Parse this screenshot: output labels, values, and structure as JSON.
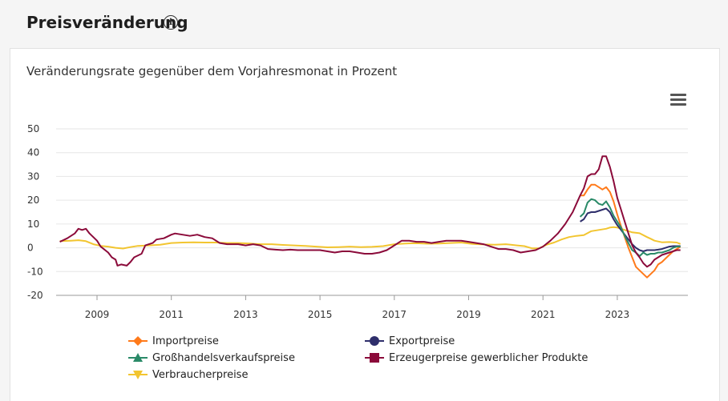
{
  "header": {
    "title": "Preisveränderung",
    "info_icon": "info-icon"
  },
  "menu": {
    "icon": "hamburger-menu-icon"
  },
  "chart_data": {
    "type": "line",
    "title": "Preisveränderung",
    "subtitle": "Veränderungsrate gegenüber dem Vorjahresmonat in Prozent",
    "xlabel": "",
    "ylabel": "",
    "xlim": [
      2007.9,
      2024.9
    ],
    "ylim": [
      -20,
      50
    ],
    "yticks": [
      -20,
      -10,
      0,
      10,
      20,
      30,
      40,
      50
    ],
    "xticks": [
      "2009",
      "2011",
      "2013",
      "2015",
      "2017",
      "2019",
      "2021",
      "2023"
    ],
    "grid": true,
    "legend_position": "bottom",
    "series": [
      {
        "name": "Importpreise",
        "color": "#ff7a1a",
        "marker": "diamond",
        "points": [
          [
            2022.0,
            22
          ],
          [
            2022.1,
            22
          ],
          [
            2022.2,
            24.5
          ],
          [
            2022.3,
            26.5
          ],
          [
            2022.4,
            26.5
          ],
          [
            2022.5,
            25.5
          ],
          [
            2022.6,
            24.5
          ],
          [
            2022.7,
            25.5
          ],
          [
            2022.8,
            23.5
          ],
          [
            2022.9,
            19.5
          ],
          [
            2023.0,
            14
          ],
          [
            2023.1,
            9
          ],
          [
            2023.2,
            4.5
          ],
          [
            2023.3,
            0
          ],
          [
            2023.4,
            -4
          ],
          [
            2023.5,
            -8
          ],
          [
            2023.6,
            -9.5
          ],
          [
            2023.7,
            -11
          ],
          [
            2023.8,
            -12.5
          ],
          [
            2023.9,
            -11
          ],
          [
            2024.0,
            -9.5
          ],
          [
            2024.1,
            -7
          ],
          [
            2024.2,
            -6
          ],
          [
            2024.3,
            -4.5
          ],
          [
            2024.4,
            -3
          ],
          [
            2024.5,
            -1.5
          ],
          [
            2024.6,
            -0.5
          ],
          [
            2024.7,
            0.5
          ]
        ]
      },
      {
        "name": "Exportpreise",
        "color": "#2e2e6b",
        "marker": "circle",
        "points": [
          [
            2022.0,
            11
          ],
          [
            2022.1,
            12
          ],
          [
            2022.2,
            14.5
          ],
          [
            2022.3,
            15
          ],
          [
            2022.4,
            15
          ],
          [
            2022.5,
            15.5
          ],
          [
            2022.6,
            16
          ],
          [
            2022.7,
            16.5
          ],
          [
            2022.8,
            15
          ],
          [
            2022.9,
            12
          ],
          [
            2023.0,
            9.5
          ],
          [
            2023.1,
            7.5
          ],
          [
            2023.2,
            5.5
          ],
          [
            2023.3,
            3.5
          ],
          [
            2023.4,
            1.5
          ],
          [
            2023.5,
            0
          ],
          [
            2023.6,
            -1
          ],
          [
            2023.7,
            -1.5
          ],
          [
            2023.8,
            -1
          ],
          [
            2023.9,
            -1
          ],
          [
            2024.0,
            -1
          ],
          [
            2024.1,
            -0.8
          ],
          [
            2024.2,
            -0.5
          ],
          [
            2024.3,
            0
          ],
          [
            2024.4,
            0.5
          ],
          [
            2024.5,
            0.7
          ],
          [
            2024.6,
            0.7
          ],
          [
            2024.7,
            0.7
          ]
        ]
      },
      {
        "name": "Großhandelsverkaufspreise",
        "color": "#2a8a68",
        "marker": "triangle",
        "points": [
          [
            2022.0,
            13
          ],
          [
            2022.1,
            14.5
          ],
          [
            2022.2,
            19
          ],
          [
            2022.3,
            20.5
          ],
          [
            2022.4,
            20
          ],
          [
            2022.5,
            18.5
          ],
          [
            2022.6,
            18
          ],
          [
            2022.7,
            19.5
          ],
          [
            2022.8,
            17
          ],
          [
            2022.9,
            13.5
          ],
          [
            2023.0,
            11
          ],
          [
            2023.1,
            8.5
          ],
          [
            2023.2,
            5
          ],
          [
            2023.3,
            2
          ],
          [
            2023.4,
            -1
          ],
          [
            2023.5,
            -2
          ],
          [
            2023.6,
            -3.5
          ],
          [
            2023.7,
            -2
          ],
          [
            2023.8,
            -3
          ],
          [
            2023.9,
            -2.5
          ],
          [
            2024.0,
            -2.5
          ],
          [
            2024.1,
            -2
          ],
          [
            2024.2,
            -2
          ],
          [
            2024.3,
            -1.5
          ],
          [
            2024.4,
            -1
          ],
          [
            2024.5,
            0
          ],
          [
            2024.6,
            0.5
          ],
          [
            2024.7,
            0.5
          ]
        ]
      },
      {
        "name": "Erzeugerpreise gewerblicher Produkte",
        "color": "#8b0a3a",
        "marker": "square",
        "points": [
          [
            2008.0,
            2.5
          ],
          [
            2008.2,
            4
          ],
          [
            2008.4,
            6
          ],
          [
            2008.5,
            8
          ],
          [
            2008.6,
            7.5
          ],
          [
            2008.7,
            8
          ],
          [
            2008.8,
            6
          ],
          [
            2009.0,
            3
          ],
          [
            2009.1,
            0.5
          ],
          [
            2009.3,
            -2
          ],
          [
            2009.4,
            -4
          ],
          [
            2009.5,
            -5
          ],
          [
            2009.55,
            -7.5
          ],
          [
            2009.65,
            -7
          ],
          [
            2009.8,
            -7.5
          ],
          [
            2009.9,
            -6
          ],
          [
            2010.0,
            -4
          ],
          [
            2010.2,
            -2.5
          ],
          [
            2010.3,
            1
          ],
          [
            2010.5,
            2
          ],
          [
            2010.6,
            3.5
          ],
          [
            2010.8,
            4
          ],
          [
            2011.0,
            5.5
          ],
          [
            2011.1,
            6
          ],
          [
            2011.3,
            5.5
          ],
          [
            2011.5,
            5
          ],
          [
            2011.7,
            5.5
          ],
          [
            2011.9,
            4.5
          ],
          [
            2012.1,
            4
          ],
          [
            2012.3,
            2
          ],
          [
            2012.5,
            1.5
          ],
          [
            2012.8,
            1.5
          ],
          [
            2013.0,
            1
          ],
          [
            2013.2,
            1.5
          ],
          [
            2013.4,
            1
          ],
          [
            2013.6,
            -0.5
          ],
          [
            2013.8,
            -0.8
          ],
          [
            2014.0,
            -1
          ],
          [
            2014.2,
            -0.8
          ],
          [
            2014.4,
            -1
          ],
          [
            2014.6,
            -1
          ],
          [
            2014.8,
            -1
          ],
          [
            2015.0,
            -1
          ],
          [
            2015.2,
            -1.5
          ],
          [
            2015.4,
            -2
          ],
          [
            2015.6,
            -1.5
          ],
          [
            2015.8,
            -1.5
          ],
          [
            2016.0,
            -2
          ],
          [
            2016.2,
            -2.5
          ],
          [
            2016.4,
            -2.5
          ],
          [
            2016.6,
            -2
          ],
          [
            2016.8,
            -1
          ],
          [
            2017.0,
            1
          ],
          [
            2017.2,
            3
          ],
          [
            2017.4,
            3
          ],
          [
            2017.6,
            2.5
          ],
          [
            2017.8,
            2.5
          ],
          [
            2018.0,
            2
          ],
          [
            2018.2,
            2.5
          ],
          [
            2018.4,
            3
          ],
          [
            2018.6,
            3
          ],
          [
            2018.8,
            3
          ],
          [
            2019.0,
            2.5
          ],
          [
            2019.2,
            2
          ],
          [
            2019.4,
            1.5
          ],
          [
            2019.6,
            0.5
          ],
          [
            2019.8,
            -0.5
          ],
          [
            2020.0,
            -0.5
          ],
          [
            2020.2,
            -1
          ],
          [
            2020.4,
            -2
          ],
          [
            2020.6,
            -1.5
          ],
          [
            2020.8,
            -1
          ],
          [
            2021.0,
            0.5
          ],
          [
            2021.2,
            3
          ],
          [
            2021.4,
            6
          ],
          [
            2021.6,
            10
          ],
          [
            2021.8,
            15
          ],
          [
            2022.0,
            22
          ],
          [
            2022.1,
            25
          ],
          [
            2022.2,
            30
          ],
          [
            2022.3,
            31
          ],
          [
            2022.4,
            31
          ],
          [
            2022.5,
            33
          ],
          [
            2022.6,
            38.5
          ],
          [
            2022.7,
            38.5
          ],
          [
            2022.8,
            34
          ],
          [
            2022.9,
            28
          ],
          [
            2023.0,
            21
          ],
          [
            2023.1,
            16
          ],
          [
            2023.2,
            11
          ],
          [
            2023.3,
            6
          ],
          [
            2023.4,
            1
          ],
          [
            2023.5,
            -2
          ],
          [
            2023.6,
            -4
          ],
          [
            2023.7,
            -6.5
          ],
          [
            2023.8,
            -8
          ],
          [
            2023.9,
            -7
          ],
          [
            2024.0,
            -5
          ],
          [
            2024.1,
            -4
          ],
          [
            2024.2,
            -3
          ],
          [
            2024.3,
            -2.5
          ],
          [
            2024.4,
            -2
          ],
          [
            2024.5,
            -1.5
          ],
          [
            2024.6,
            -1
          ],
          [
            2024.7,
            -1
          ]
        ]
      },
      {
        "name": "Verbraucherpreise",
        "color": "#f2c530",
        "marker": "triangle-down",
        "points": [
          [
            2008.0,
            2.8
          ],
          [
            2008.3,
            3
          ],
          [
            2008.5,
            3.2
          ],
          [
            2008.7,
            2.8
          ],
          [
            2008.9,
            1.5
          ],
          [
            2009.1,
            0.8
          ],
          [
            2009.3,
            0.5
          ],
          [
            2009.5,
            0
          ],
          [
            2009.7,
            -0.3
          ],
          [
            2009.9,
            0.3
          ],
          [
            2010.1,
            0.8
          ],
          [
            2010.4,
            1
          ],
          [
            2010.7,
            1.3
          ],
          [
            2011.0,
            2
          ],
          [
            2011.3,
            2.2
          ],
          [
            2011.6,
            2.3
          ],
          [
            2011.9,
            2.2
          ],
          [
            2012.2,
            2.2
          ],
          [
            2012.5,
            2
          ],
          [
            2012.8,
            2
          ],
          [
            2013.1,
            1.8
          ],
          [
            2013.4,
            1.5
          ],
          [
            2013.7,
            1.5
          ],
          [
            2014.0,
            1.2
          ],
          [
            2014.3,
            1
          ],
          [
            2014.6,
            0.8
          ],
          [
            2014.9,
            0.5
          ],
          [
            2015.2,
            0.2
          ],
          [
            2015.5,
            0.3
          ],
          [
            2015.8,
            0.5
          ],
          [
            2016.1,
            0.3
          ],
          [
            2016.4,
            0.4
          ],
          [
            2016.7,
            0.7
          ],
          [
            2017.0,
            1.5
          ],
          [
            2017.3,
            1.8
          ],
          [
            2017.6,
            1.9
          ],
          [
            2017.9,
            1.7
          ],
          [
            2018.2,
            1.8
          ],
          [
            2018.5,
            2
          ],
          [
            2018.8,
            2.2
          ],
          [
            2019.1,
            1.6
          ],
          [
            2019.4,
            1.4
          ],
          [
            2019.7,
            1.3
          ],
          [
            2020.0,
            1.5
          ],
          [
            2020.3,
            1
          ],
          [
            2020.5,
            0.7
          ],
          [
            2020.7,
            -0.2
          ],
          [
            2020.9,
            -0.2
          ],
          [
            2021.1,
            1.3
          ],
          [
            2021.3,
            2.2
          ],
          [
            2021.5,
            3.5
          ],
          [
            2021.7,
            4.5
          ],
          [
            2021.9,
            5
          ],
          [
            2022.1,
            5.3
          ],
          [
            2022.3,
            7
          ],
          [
            2022.5,
            7.5
          ],
          [
            2022.7,
            8
          ],
          [
            2022.8,
            8.5
          ],
          [
            2022.9,
            8.7
          ],
          [
            2023.0,
            8.5
          ],
          [
            2023.2,
            7.5
          ],
          [
            2023.4,
            6.5
          ],
          [
            2023.6,
            6.1
          ],
          [
            2023.8,
            4.5
          ],
          [
            2023.9,
            3.8
          ],
          [
            2024.0,
            3
          ],
          [
            2024.2,
            2.3
          ],
          [
            2024.4,
            2.4
          ],
          [
            2024.6,
            2.2
          ],
          [
            2024.7,
            1.6
          ]
        ]
      }
    ]
  }
}
